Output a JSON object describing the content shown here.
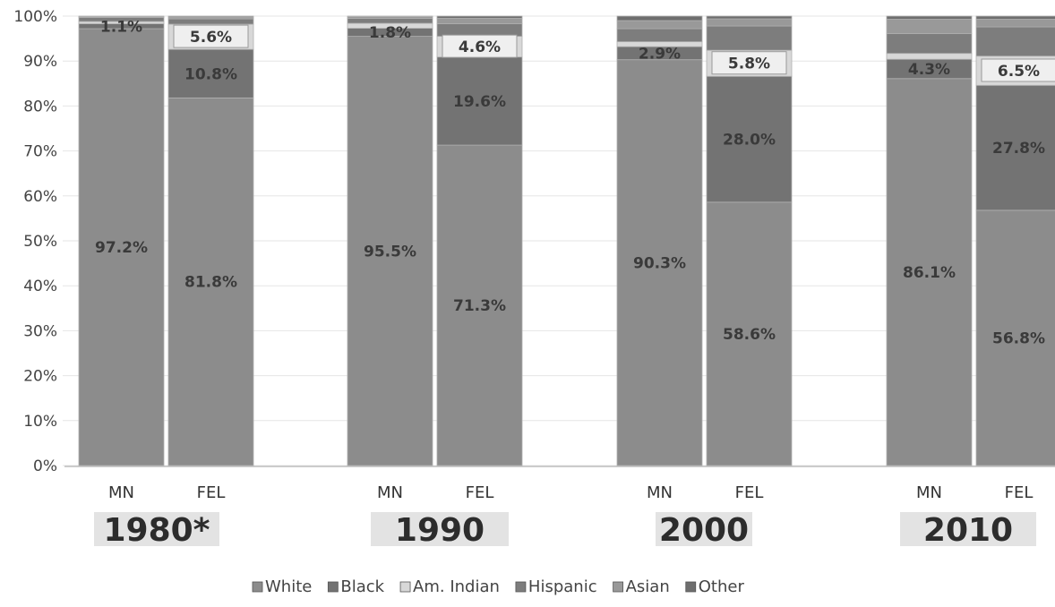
{
  "chart_data": {
    "type": "bar",
    "stacked": true,
    "ylim": [
      0,
      100
    ],
    "yticks": [
      "0%",
      "10%",
      "20%",
      "30%",
      "40%",
      "50%",
      "60%",
      "70%",
      "80%",
      "90%",
      "100%"
    ],
    "groups": [
      {
        "label": "1980*",
        "bars": [
          {
            "label": "MN",
            "values": [
              97.2,
              1.1,
              0.5,
              0.9,
              0.2,
              0.1
            ],
            "shown_labels": {
              "0": "97.2%",
              "1": "1.1%"
            }
          },
          {
            "label": "FEL",
            "values": [
              81.8,
              10.8,
              5.6,
              1.2,
              0.4,
              0.2
            ],
            "shown_labels": {
              "0": "81.8%",
              "1": "10.8%",
              "2": "5.6%"
            }
          }
        ]
      },
      {
        "label": "1990",
        "bars": [
          {
            "label": "MN",
            "values": [
              95.5,
              1.8,
              1.1,
              1.1,
              0.4,
              0.1
            ],
            "shown_labels": {
              "0": "95.5%",
              "1": "1.8%"
            }
          },
          {
            "label": "FEL",
            "values": [
              71.3,
              19.6,
              4.6,
              2.8,
              1.2,
              0.5
            ],
            "shown_labels": {
              "0": "71.3%",
              "1": "19.6%",
              "2": "4.6%"
            }
          }
        ]
      },
      {
        "label": "2000",
        "bars": [
          {
            "label": "MN",
            "values": [
              90.3,
              2.9,
              1.1,
              2.9,
              1.8,
              1.0
            ],
            "shown_labels": {
              "0": "90.3%",
              "1": "2.9%"
            }
          },
          {
            "label": "FEL",
            "values": [
              58.6,
              28.0,
              5.8,
              5.4,
              1.6,
              0.6
            ],
            "shown_labels": {
              "0": "58.6%",
              "1": "28.0%",
              "2": "5.8%"
            }
          }
        ]
      },
      {
        "label": "2010",
        "bars": [
          {
            "label": "MN",
            "values": [
              86.1,
              4.3,
              1.3,
              4.4,
              3.2,
              0.7
            ],
            "shown_labels": {
              "0": "86.1%",
              "1": "4.3%"
            }
          },
          {
            "label": "FEL",
            "values": [
              56.8,
              27.8,
              6.5,
              6.5,
              1.7,
              0.7
            ],
            "shown_labels": {
              "0": "56.8%",
              "1": "27.8%",
              "2": "6.5%"
            }
          }
        ]
      }
    ],
    "series": [
      {
        "name": "White",
        "color": "#8c8c8c"
      },
      {
        "name": "Black",
        "color": "#737373"
      },
      {
        "name": "Am. Indian",
        "color": "#d8d8d8"
      },
      {
        "name": "Hispanic",
        "color": "#7d7d7d"
      },
      {
        "name": "Asian",
        "color": "#999999"
      },
      {
        "name": "Other",
        "color": "#6e6e6e"
      }
    ],
    "legend_position": "bottom",
    "grid": true
  }
}
